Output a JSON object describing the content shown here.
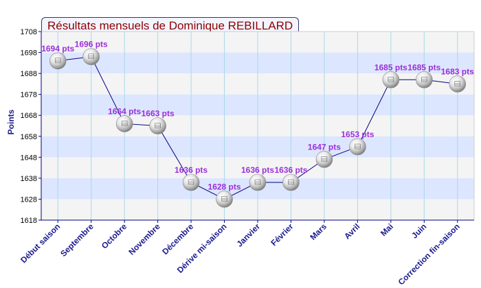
{
  "chart_data": {
    "type": "line",
    "title": "Résultats mensuels de Dominique REBILLARD",
    "ylabel": "Points",
    "xlabel": "",
    "ylim": [
      1618,
      1708
    ],
    "yticks": [
      1618,
      1628,
      1638,
      1648,
      1658,
      1668,
      1678,
      1688,
      1698,
      1708
    ],
    "categories": [
      "Début saison",
      "Septembre",
      "Octobre",
      "Novembre",
      "Décembre",
      "Dérive mi-saison",
      "Janvier",
      "Février",
      "Mars",
      "Avril",
      "Mai",
      "Juin",
      "Correction fin-saison"
    ],
    "series": [
      {
        "values": [
          1694,
          1696,
          1664,
          1663,
          1636,
          1628,
          1636,
          1636,
          1647,
          1653,
          1685,
          1685,
          1683
        ],
        "labels": [
          "1694 pts",
          "1696 pts",
          "1664 pts",
          "1663 pts",
          "1636 pts",
          "1628 pts",
          "1636 pts",
          "1636 pts",
          "1647 pts",
          "1653 pts",
          "1685 pts",
          "1685 pts",
          "1683 pts"
        ]
      }
    ],
    "grid": true,
    "colors": {
      "line": "#000080",
      "band_light": "#f4f4f4",
      "band_blue": "#dde6ff",
      "vgrid": "#a8d8e8",
      "axis": "#000080",
      "title_text": "#8b0000",
      "data_label": "#9b30d9",
      "category_label": "#1a1a8c"
    }
  }
}
